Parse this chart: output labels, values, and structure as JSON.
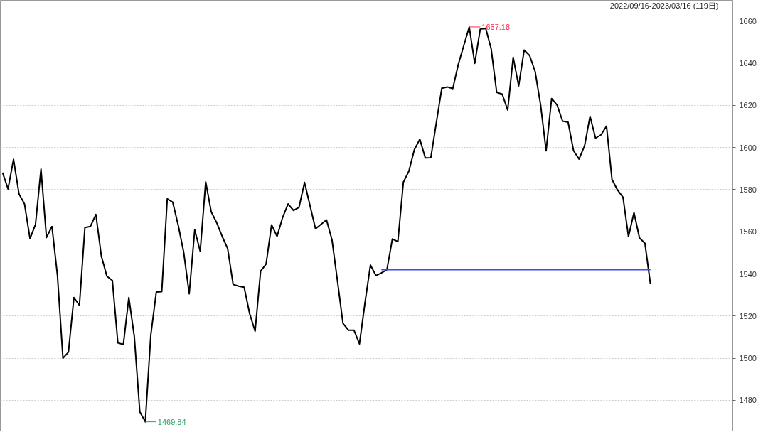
{
  "chart_data": {
    "type": "line",
    "categories": [
      null,
      null,
      null,
      null,
      null,
      null,
      null,
      null,
      null,
      null,
      null,
      null,
      null,
      null,
      null,
      null,
      null,
      null,
      null,
      null,
      null,
      null,
      null,
      null,
      null,
      null,
      null,
      null,
      null,
      null,
      null,
      null,
      null,
      null,
      null,
      null,
      null,
      null,
      null,
      null,
      null,
      null,
      null,
      null,
      null,
      null,
      null,
      null,
      null,
      null,
      null,
      null,
      null,
      null,
      null,
      null,
      null,
      null,
      null,
      null,
      null,
      null,
      null,
      null,
      null,
      null,
      null,
      null,
      null,
      null,
      null,
      null,
      null,
      null,
      null,
      null,
      null,
      null,
      null,
      null,
      null,
      null,
      null,
      null,
      null,
      null,
      null,
      null,
      null,
      null,
      null,
      null,
      null,
      null,
      null,
      null,
      null,
      null,
      null,
      null,
      null,
      null,
      null,
      null,
      null,
      null,
      null,
      null,
      null,
      null,
      null,
      null,
      null,
      null,
      null,
      null,
      null,
      null,
      null
    ],
    "series": [
      {
        "color": "#000000",
        "values": [
          1588.1,
          1580.3,
          1594.4,
          1577.9,
          1573.2,
          1556.7,
          1563.5,
          1589.7,
          1557.3,
          1562.5,
          1539.2,
          1500.0,
          1502.9,
          1528.8,
          1525.1,
          1562.0,
          1562.5,
          1568.2,
          1548.4,
          1538.9,
          1536.9,
          1507.3,
          1506.5,
          1528.8,
          1510.2,
          1474.6,
          1469.84,
          1511.0,
          1531.4,
          1531.6,
          1575.6,
          1574.0,
          1563.0,
          1550.2,
          1530.6,
          1560.9,
          1550.7,
          1583.7,
          1569.5,
          1564.3,
          1557.8,
          1552.0,
          1535.0,
          1534.2,
          1533.7,
          1521.2,
          1512.8,
          1541.3,
          1544.7,
          1563.3,
          1557.8,
          1566.7,
          1573.2,
          1570.1,
          1571.6,
          1583.4,
          1572.4,
          1561.4,
          1563.5,
          1565.6,
          1556.2,
          1536.6,
          1516.5,
          1513.3,
          1513.3,
          1506.8,
          1526.1,
          1544.2,
          1539.2,
          1540.5,
          1542.0,
          1556.6,
          1555.3,
          1583.5,
          1588.7,
          1598.9,
          1603.9,
          1595.0,
          1595.1,
          1611.7,
          1628.1,
          1628.7,
          1627.9,
          1639.4,
          1648.3,
          1657.18,
          1639.9,
          1656.1,
          1656.6,
          1646.7,
          1626.1,
          1625.3,
          1617.7,
          1642.8,
          1629.2,
          1646.2,
          1643.6,
          1636.0,
          1620.1,
          1598.4,
          1623.2,
          1620.1,
          1612.5,
          1612.0,
          1598.4,
          1594.5,
          1600.7,
          1614.8,
          1604.4,
          1606.0,
          1610.1,
          1584.8,
          1579.8,
          1576.4,
          1557.7,
          1569.1,
          1557.1,
          1554.5,
          1535.2
        ]
      },
      {
        "type": "line",
        "color": "#3b4cf5",
        "values": [
          null,
          null,
          null,
          null,
          null,
          null,
          null,
          null,
          null,
          null,
          null,
          null,
          null,
          null,
          null,
          null,
          null,
          null,
          null,
          null,
          null,
          null,
          null,
          null,
          null,
          null,
          null,
          null,
          null,
          null,
          null,
          null,
          null,
          null,
          null,
          null,
          null,
          null,
          null,
          null,
          null,
          null,
          null,
          null,
          null,
          null,
          null,
          null,
          null,
          null,
          null,
          null,
          null,
          null,
          null,
          null,
          null,
          null,
          null,
          null,
          null,
          null,
          null,
          null,
          null,
          null,
          null,
          null,
          null,
          1542,
          1542,
          1542,
          1542,
          1542,
          1542,
          1542,
          1542,
          1542,
          1542,
          1542,
          1542,
          1542,
          1542,
          1542,
          1542,
          1542,
          1542,
          1542,
          1542,
          1542,
          1542,
          1542,
          1542,
          1542,
          1542,
          1542,
          1542,
          1542,
          1542,
          1542,
          1542,
          1542,
          1542,
          1542,
          1542,
          1542,
          1542,
          1542,
          1542,
          1542,
          1542,
          1542,
          1542,
          1542,
          1542,
          1542,
          1542,
          1542,
          1542
        ]
      }
    ],
    "annotations": [
      "2022/09/16-2023/03/16 (119日)",
      "1657.18",
      "1469.84"
    ],
    "ylim": [
      1465.5,
      1669.8
    ],
    "yticks": [
      1480,
      1500,
      1520,
      1540,
      1560,
      1580,
      1600,
      1620,
      1640,
      1660
    ],
    "grid": "y",
    "tick_labels": "y",
    "marker": "none"
  }
}
